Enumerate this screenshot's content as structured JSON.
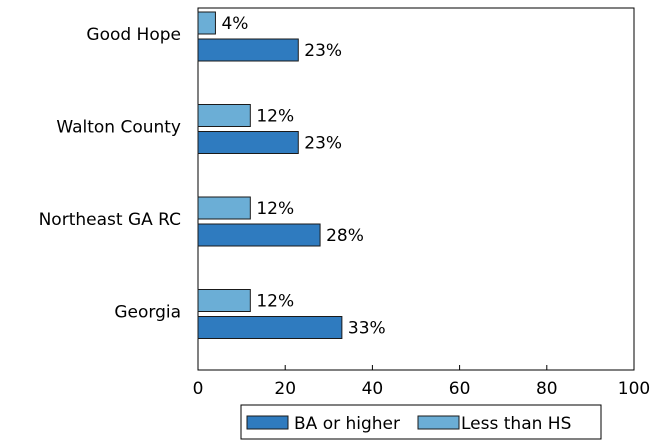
{
  "chart_data": {
    "type": "bar",
    "orientation": "horizontal",
    "categories": [
      "Good Hope",
      "Walton County",
      "Northeast GA RC",
      "Georgia"
    ],
    "series": [
      {
        "name": "Less than HS",
        "values": [
          4,
          12,
          12,
          12
        ],
        "labels": [
          "4%",
          "12%",
          "12%",
          "12%"
        ],
        "color": "#6baed6"
      },
      {
        "name": "BA or higher",
        "values": [
          23,
          23,
          28,
          33
        ],
        "labels": [
          "23%",
          "23%",
          "28%",
          "33%"
        ],
        "color": "#2f7bbf"
      }
    ],
    "xlim": [
      0,
      100
    ],
    "xticks": [
      0,
      20,
      40,
      60,
      80,
      100
    ],
    "legend": {
      "placement": "bottom",
      "order": [
        "BA or higher",
        "Less than HS"
      ]
    },
    "grid": false
  }
}
